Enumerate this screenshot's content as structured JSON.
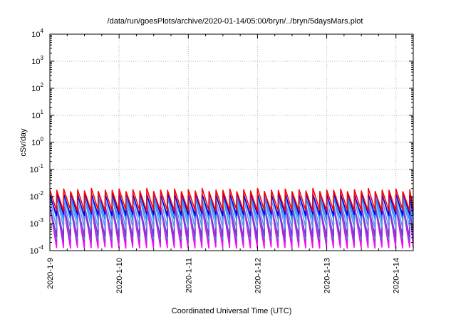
{
  "chart_data": {
    "type": "line",
    "title": "/data/run/goesPlots/archive/2020-01-14/05:00/bryn/../bryn/5daysMars.plot",
    "xlabel": "Coordinated Universal Time (UTC)",
    "ylabel": "cSv/day",
    "yscale": "log",
    "ylim": [
      0.0001,
      10000
    ],
    "xlim_days": [
      0,
      5.25
    ],
    "grid": true,
    "y_ticks": [
      {
        "base": "10",
        "exp": "-4"
      },
      {
        "base": "10",
        "exp": "-3"
      },
      {
        "base": "10",
        "exp": "-2"
      },
      {
        "base": "10",
        "exp": "-1"
      },
      {
        "base": "10",
        "exp": "0"
      },
      {
        "base": "10",
        "exp": "1"
      },
      {
        "base": "10",
        "exp": "2"
      },
      {
        "base": "10",
        "exp": "3"
      },
      {
        "base": "10",
        "exp": "4"
      }
    ],
    "x_ticks": [
      "2020-1-9",
      "2020-1-10",
      "2020-1-11",
      "2020-1-12",
      "2020-1-13",
      "2020-1-14"
    ],
    "pattern": {
      "period_days": 0.1,
      "jitter": [
        1.0,
        1.12,
        0.9,
        1.05,
        0.95,
        1.18,
        0.88,
        1.02
      ]
    },
    "series": [
      {
        "color": "#ff00ff",
        "peak": 0.0045,
        "trough": 0.00011
      },
      {
        "color": "#9b30d0",
        "peak": 0.0038,
        "trough": 0.00018
      },
      {
        "color": "#20b2aa",
        "peak": 0.0048,
        "trough": 0.00024
      },
      {
        "color": "#8a2be2",
        "peak": 0.0042,
        "trough": 0.00028
      },
      {
        "color": "#6495ed",
        "peak": 0.0085,
        "trough": 0.0006
      },
      {
        "color": "#1e90ff",
        "peak": 0.011,
        "trough": 0.0012
      },
      {
        "color": "#0000ee",
        "peak": 0.013,
        "trough": 0.0018
      },
      {
        "color": "#ff0000",
        "peak": 0.017,
        "trough": 0.0026
      }
    ]
  }
}
